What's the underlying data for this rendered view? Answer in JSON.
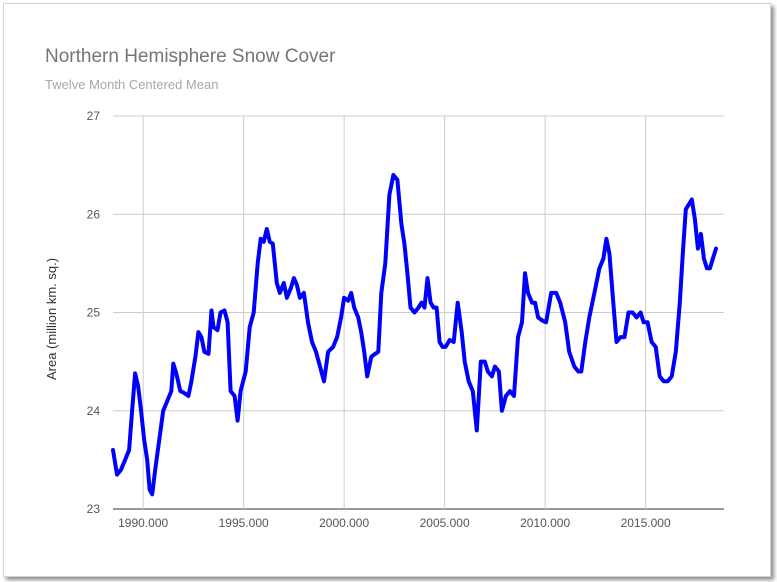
{
  "chart_data": {
    "type": "line",
    "title": "Northern Hemisphere Snow Cover",
    "subtitle": "Twelve Month Centered Mean",
    "xlabel": "",
    "ylabel": "Area (million km. sq.)",
    "xlim": [
      1988.5,
      2018.9
    ],
    "ylim": [
      23,
      27
    ],
    "x_ticks": [
      1990,
      1995,
      2000,
      2005,
      2010,
      2015
    ],
    "x_tick_labels": [
      "1990.000",
      "1995.000",
      "2000.000",
      "2005.000",
      "2010.000",
      "2015.000"
    ],
    "y_ticks": [
      23,
      24,
      25,
      26,
      27
    ],
    "y_tick_labels": [
      "23",
      "24",
      "25",
      "26",
      "27"
    ],
    "grid": true,
    "legend": "none",
    "line_color": "#0000ff",
    "series": [
      {
        "points": [
          [
            1988.5,
            23.6
          ],
          [
            1988.7,
            23.35
          ],
          [
            1988.9,
            23.4
          ],
          [
            1989.1,
            23.5
          ],
          [
            1989.3,
            23.6
          ],
          [
            1989.45,
            24.0
          ],
          [
            1989.6,
            24.38
          ],
          [
            1989.75,
            24.25
          ],
          [
            1989.9,
            24.0
          ],
          [
            1990.05,
            23.7
          ],
          [
            1990.2,
            23.5
          ],
          [
            1990.32,
            23.2
          ],
          [
            1990.45,
            23.15
          ],
          [
            1990.6,
            23.4
          ],
          [
            1990.8,
            23.7
          ],
          [
            1991.0,
            24.0
          ],
          [
            1991.2,
            24.1
          ],
          [
            1991.4,
            24.2
          ],
          [
            1991.5,
            24.48
          ],
          [
            1991.65,
            24.38
          ],
          [
            1991.85,
            24.2
          ],
          [
            1992.05,
            24.18
          ],
          [
            1992.25,
            24.15
          ],
          [
            1992.4,
            24.3
          ],
          [
            1992.6,
            24.55
          ],
          [
            1992.75,
            24.8
          ],
          [
            1992.9,
            24.75
          ],
          [
            1993.05,
            24.6
          ],
          [
            1993.25,
            24.58
          ],
          [
            1993.4,
            25.02
          ],
          [
            1993.5,
            24.85
          ],
          [
            1993.7,
            24.82
          ],
          [
            1993.85,
            25.0
          ],
          [
            1994.05,
            25.02
          ],
          [
            1994.2,
            24.9
          ],
          [
            1994.35,
            24.2
          ],
          [
            1994.55,
            24.15
          ],
          [
            1994.7,
            23.9
          ],
          [
            1994.85,
            24.2
          ],
          [
            1995.1,
            24.4
          ],
          [
            1995.3,
            24.85
          ],
          [
            1995.5,
            25.0
          ],
          [
            1995.7,
            25.5
          ],
          [
            1995.85,
            25.75
          ],
          [
            1996.0,
            25.72
          ],
          [
            1996.15,
            25.85
          ],
          [
            1996.3,
            25.72
          ],
          [
            1996.45,
            25.7
          ],
          [
            1996.65,
            25.3
          ],
          [
            1996.8,
            25.2
          ],
          [
            1997.0,
            25.3
          ],
          [
            1997.15,
            25.15
          ],
          [
            1997.35,
            25.25
          ],
          [
            1997.5,
            25.35
          ],
          [
            1997.65,
            25.28
          ],
          [
            1997.8,
            25.15
          ],
          [
            1998.0,
            25.2
          ],
          [
            1998.2,
            24.9
          ],
          [
            1998.4,
            24.7
          ],
          [
            1998.6,
            24.6
          ],
          [
            1998.8,
            24.45
          ],
          [
            1999.0,
            24.3
          ],
          [
            1999.2,
            24.6
          ],
          [
            1999.45,
            24.65
          ],
          [
            1999.65,
            24.75
          ],
          [
            1999.85,
            24.95
          ],
          [
            2000.0,
            25.15
          ],
          [
            2000.2,
            25.12
          ],
          [
            2000.35,
            25.2
          ],
          [
            2000.5,
            25.05
          ],
          [
            2000.7,
            24.95
          ],
          [
            2000.85,
            24.8
          ],
          [
            2001.0,
            24.6
          ],
          [
            2001.15,
            24.35
          ],
          [
            2001.35,
            24.55
          ],
          [
            2001.55,
            24.58
          ],
          [
            2001.7,
            24.6
          ],
          [
            2001.85,
            25.2
          ],
          [
            2002.05,
            25.5
          ],
          [
            2002.25,
            26.2
          ],
          [
            2002.45,
            26.4
          ],
          [
            2002.65,
            26.35
          ],
          [
            2002.85,
            25.9
          ],
          [
            2003.0,
            25.7
          ],
          [
            2003.15,
            25.4
          ],
          [
            2003.3,
            25.05
          ],
          [
            2003.5,
            25.0
          ],
          [
            2003.7,
            25.05
          ],
          [
            2003.85,
            25.1
          ],
          [
            2004.0,
            25.05
          ],
          [
            2004.15,
            25.35
          ],
          [
            2004.3,
            25.1
          ],
          [
            2004.45,
            25.05
          ],
          [
            2004.6,
            25.05
          ],
          [
            2004.75,
            24.7
          ],
          [
            2004.9,
            24.65
          ],
          [
            2005.05,
            24.65
          ],
          [
            2005.25,
            24.72
          ],
          [
            2005.45,
            24.7
          ],
          [
            2005.65,
            25.1
          ],
          [
            2005.85,
            24.8
          ],
          [
            2006.0,
            24.5
          ],
          [
            2006.2,
            24.3
          ],
          [
            2006.4,
            24.2
          ],
          [
            2006.6,
            23.8
          ],
          [
            2006.8,
            24.5
          ],
          [
            2007.0,
            24.5
          ],
          [
            2007.15,
            24.4
          ],
          [
            2007.35,
            24.35
          ],
          [
            2007.5,
            24.45
          ],
          [
            2007.7,
            24.4
          ],
          [
            2007.85,
            24.0
          ],
          [
            2008.05,
            24.15
          ],
          [
            2008.25,
            24.2
          ],
          [
            2008.45,
            24.15
          ],
          [
            2008.65,
            24.75
          ],
          [
            2008.85,
            24.9
          ],
          [
            2009.0,
            25.4
          ],
          [
            2009.15,
            25.2
          ],
          [
            2009.35,
            25.1
          ],
          [
            2009.5,
            25.1
          ],
          [
            2009.65,
            24.95
          ],
          [
            2009.85,
            24.92
          ],
          [
            2010.05,
            24.9
          ],
          [
            2010.3,
            25.2
          ],
          [
            2010.55,
            25.2
          ],
          [
            2010.75,
            25.1
          ],
          [
            2011.0,
            24.9
          ],
          [
            2011.2,
            24.6
          ],
          [
            2011.45,
            24.45
          ],
          [
            2011.65,
            24.4
          ],
          [
            2011.8,
            24.4
          ],
          [
            2012.0,
            24.7
          ],
          [
            2012.2,
            24.95
          ],
          [
            2012.45,
            25.2
          ],
          [
            2012.7,
            25.45
          ],
          [
            2012.9,
            25.55
          ],
          [
            2013.05,
            25.75
          ],
          [
            2013.2,
            25.6
          ],
          [
            2013.35,
            25.2
          ],
          [
            2013.55,
            24.7
          ],
          [
            2013.75,
            24.75
          ],
          [
            2013.95,
            24.75
          ],
          [
            2014.15,
            25.0
          ],
          [
            2014.35,
            25.0
          ],
          [
            2014.55,
            24.95
          ],
          [
            2014.75,
            25.0
          ],
          [
            2014.9,
            24.9
          ],
          [
            2015.1,
            24.9
          ],
          [
            2015.3,
            24.7
          ],
          [
            2015.5,
            24.65
          ],
          [
            2015.7,
            24.35
          ],
          [
            2015.9,
            24.3
          ],
          [
            2016.1,
            24.3
          ],
          [
            2016.3,
            24.35
          ],
          [
            2016.5,
            24.6
          ],
          [
            2016.7,
            25.1
          ],
          [
            2016.85,
            25.6
          ],
          [
            2017.0,
            26.05
          ],
          [
            2017.15,
            26.1
          ],
          [
            2017.3,
            26.15
          ],
          [
            2017.45,
            25.95
          ],
          [
            2017.6,
            25.65
          ],
          [
            2017.75,
            25.8
          ],
          [
            2017.9,
            25.55
          ],
          [
            2018.05,
            25.45
          ],
          [
            2018.2,
            25.45
          ],
          [
            2018.35,
            25.55
          ],
          [
            2018.5,
            25.65
          ]
        ]
      }
    ]
  }
}
